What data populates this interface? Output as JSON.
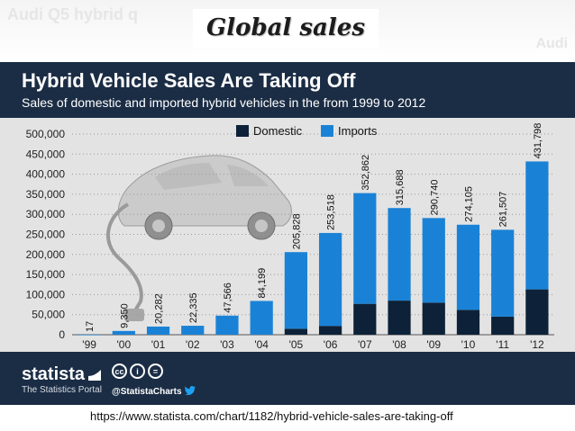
{
  "slide": {
    "title": "Global sales",
    "background_text_left": "Audi Q5 hybrid q",
    "background_text_right": "Audi",
    "source_url": "https://www.statista.com/chart/1182/hybrid-vehicle-sales-are-taking-off"
  },
  "footer": {
    "brand": "statista",
    "tagline": "The Statistics Portal",
    "twitter": "@StatistaCharts",
    "license_icons": [
      "cc",
      "i",
      "="
    ]
  },
  "colors": {
    "header": "#1b2d45",
    "domestic": "#0d2238",
    "imports": "#1a82d6",
    "card": "#e3e3e3",
    "gridline": "#999999"
  },
  "chart_data": {
    "type": "bar",
    "stacked": true,
    "title": "Hybrid Vehicle Sales Are Taking Off",
    "subtitle": "Sales of domestic and imported hybrid vehicles in the from 1999 to 2012",
    "categories": [
      "'99",
      "'00",
      "'01",
      "'02",
      "'03",
      "'04",
      "'05",
      "'06",
      "'07",
      "'08",
      "'09",
      "'10",
      "'11",
      "'12"
    ],
    "series": [
      {
        "name": "Domestic",
        "values": [
          0,
          0,
          0,
          0,
          0,
          0,
          15000,
          22000,
          77000,
          85000,
          80000,
          62000,
          45000,
          113000
        ]
      },
      {
        "name": "Imports",
        "values": [
          17,
          9350,
          20282,
          22335,
          47566,
          84199,
          190828,
          231518,
          275862,
          230688,
          210740,
          212105,
          216507,
          318798
        ]
      }
    ],
    "total_labels": [
      "17",
      "9,350",
      "20,282",
      "22,335",
      "47,566",
      "84,199",
      "205,828",
      "253,518",
      "352,862",
      "315,688",
      "290,740",
      "274,105",
      "261,507",
      "431,798"
    ],
    "totals": [
      17,
      9350,
      20282,
      22335,
      47566,
      84199,
      205828,
      253518,
      352862,
      315688,
      290740,
      274105,
      261507,
      431798
    ],
    "ylim": [
      0,
      500000
    ],
    "yticks": [
      0,
      50000,
      100000,
      150000,
      200000,
      250000,
      300000,
      350000,
      400000,
      450000,
      500000
    ],
    "ytick_labels": [
      "0",
      "50,000",
      "100,000",
      "150,000",
      "200,000",
      "250,000",
      "300,000",
      "350,000",
      "400,000",
      "450,000",
      "500,000"
    ],
    "legend": {
      "position": "top",
      "labels": [
        "Domestic",
        "Imports"
      ]
    },
    "grid": true,
    "xlabel": "",
    "ylabel": ""
  }
}
